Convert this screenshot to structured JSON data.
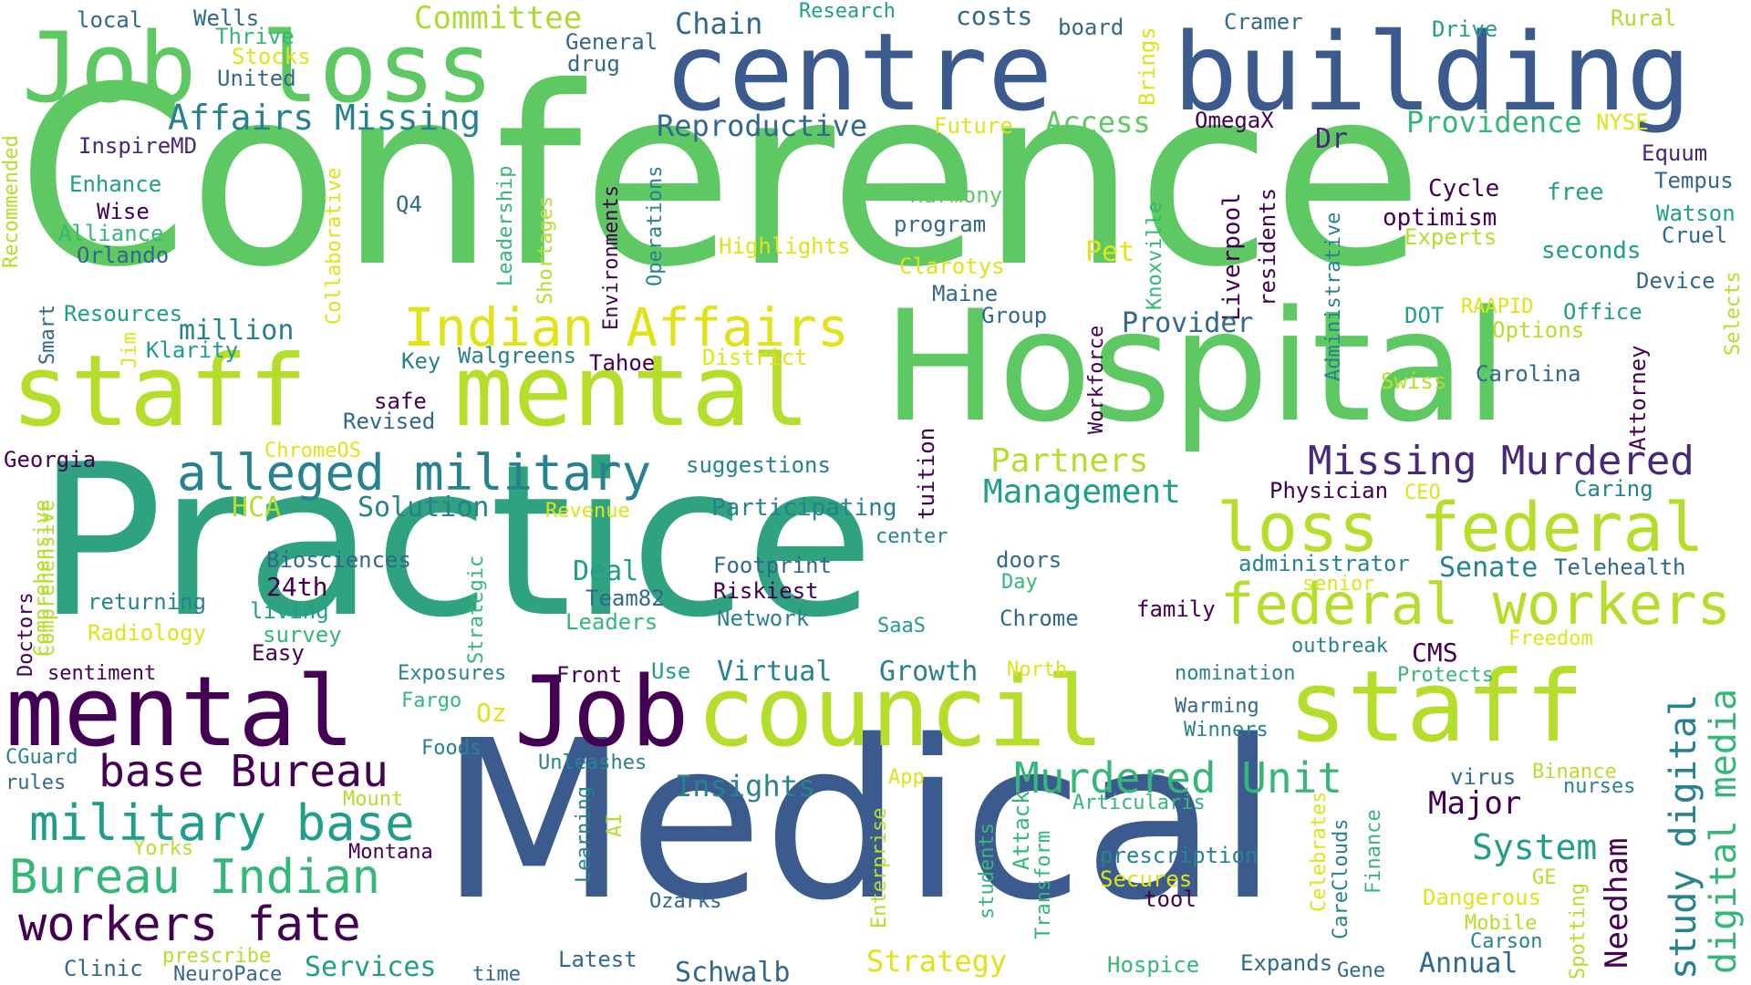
{
  "palette": {
    "dark_purple": "#440154",
    "purple": "#482878",
    "indigo": "#3e4989",
    "blue": "#31688e",
    "teal_blue": "#26828e",
    "teal": "#1f9e89",
    "green_teal": "#35b779",
    "green": "#6ece58",
    "lime": "#b5de2b",
    "yellow": "#fde725"
  },
  "words": [
    {
      "id": "conference",
      "text": "Conference"
    },
    {
      "id": "medical",
      "text": "Medical"
    },
    {
      "id": "practice",
      "text": "Practice"
    },
    {
      "id": "hospital",
      "text": "Hospital"
    },
    {
      "id": "centre",
      "text": "centre"
    },
    {
      "id": "building",
      "text": "building"
    },
    {
      "id": "job-1",
      "text": "Job"
    },
    {
      "id": "loss-1",
      "text": "loss"
    },
    {
      "id": "staff-1",
      "text": "staff"
    },
    {
      "id": "mental-1",
      "text": "mental"
    },
    {
      "id": "mental-2",
      "text": "mental"
    },
    {
      "id": "job-2",
      "text": "Job"
    },
    {
      "id": "council",
      "text": "council"
    },
    {
      "id": "staff-2",
      "text": "staff"
    },
    {
      "id": "loss-federal",
      "text": "loss federal"
    },
    {
      "id": "federal-workers",
      "text": "federal workers"
    },
    {
      "id": "indian-affairs",
      "text": "Indian Affairs"
    },
    {
      "id": "alleged-military",
      "text": "alleged military"
    },
    {
      "id": "missing-murdered",
      "text": "Missing Murdered"
    },
    {
      "id": "murdered-unit",
      "text": "Murdered Unit"
    },
    {
      "id": "base-bureau",
      "text": "base Bureau"
    },
    {
      "id": "military-base",
      "text": "military base"
    },
    {
      "id": "bureau-indian",
      "text": "Bureau Indian"
    },
    {
      "id": "workers-fate",
      "text": "workers fate"
    },
    {
      "id": "affairs-missing",
      "text": "Affairs Missing"
    },
    {
      "id": "study-digital",
      "text": "study digital"
    },
    {
      "id": "digital-media",
      "text": "digital media"
    },
    {
      "id": "committee",
      "text": "Committee"
    },
    {
      "id": "chain",
      "text": "Chain"
    },
    {
      "id": "costs",
      "text": "costs"
    },
    {
      "id": "research",
      "text": "Research"
    },
    {
      "id": "board",
      "text": "board"
    },
    {
      "id": "cramer",
      "text": "Cramer"
    },
    {
      "id": "drive",
      "text": "Drive"
    },
    {
      "id": "rural",
      "text": "Rural"
    },
    {
      "id": "local",
      "text": "local"
    },
    {
      "id": "wells",
      "text": "Wells"
    },
    {
      "id": "thrive",
      "text": "Thrive"
    },
    {
      "id": "stocks",
      "text": "Stocks"
    },
    {
      "id": "united",
      "text": "United"
    },
    {
      "id": "general",
      "text": "General"
    },
    {
      "id": "drug",
      "text": "drug"
    },
    {
      "id": "brings",
      "text": "Brings"
    },
    {
      "id": "reproductive",
      "text": "Reproductive"
    },
    {
      "id": "future",
      "text": "Future"
    },
    {
      "id": "access",
      "text": "Access"
    },
    {
      "id": "omegax",
      "text": "OmegaX"
    },
    {
      "id": "providence",
      "text": "Providence"
    },
    {
      "id": "nyse",
      "text": "NYSE"
    },
    {
      "id": "dr",
      "text": "Dr"
    },
    {
      "id": "equum",
      "text": "Equum"
    },
    {
      "id": "tempus",
      "text": "Tempus"
    },
    {
      "id": "cycle",
      "text": "Cycle"
    },
    {
      "id": "free",
      "text": "free"
    },
    {
      "id": "watson",
      "text": "Watson"
    },
    {
      "id": "optimism",
      "text": "optimism"
    },
    {
      "id": "cruel",
      "text": "Cruel"
    },
    {
      "id": "experts",
      "text": "Experts"
    },
    {
      "id": "seconds",
      "text": "seconds"
    },
    {
      "id": "device",
      "text": "Device"
    },
    {
      "id": "inspiremd",
      "text": "InspireMD"
    },
    {
      "id": "recommended",
      "text": "Recommended"
    },
    {
      "id": "enhance",
      "text": "Enhance"
    },
    {
      "id": "wise",
      "text": "Wise"
    },
    {
      "id": "alliance",
      "text": "Alliance"
    },
    {
      "id": "orlando",
      "text": "Orlando"
    },
    {
      "id": "q4",
      "text": "Q4"
    },
    {
      "id": "collaborative",
      "text": "Collaborative"
    },
    {
      "id": "leadership",
      "text": "Leadership"
    },
    {
      "id": "shortages",
      "text": "Shortages"
    },
    {
      "id": "environments",
      "text": "Environments"
    },
    {
      "id": "operations",
      "text": "Operations"
    },
    {
      "id": "harmony",
      "text": "Harmony"
    },
    {
      "id": "program",
      "text": "program"
    },
    {
      "id": "highlights",
      "text": "Highlights"
    },
    {
      "id": "clarotys",
      "text": "Clarotys"
    },
    {
      "id": "pet",
      "text": "Pet"
    },
    {
      "id": "knoxville",
      "text": "Knoxville"
    },
    {
      "id": "liverpool",
      "text": "Liverpool"
    },
    {
      "id": "residents",
      "text": "residents"
    },
    {
      "id": "administrative",
      "text": "Administrative"
    },
    {
      "id": "maine",
      "text": "Maine"
    },
    {
      "id": "group",
      "text": "Group"
    },
    {
      "id": "workforce",
      "text": "Workforce"
    },
    {
      "id": "provider",
      "text": "Provider"
    },
    {
      "id": "dot",
      "text": "DOT"
    },
    {
      "id": "raapid",
      "text": "RAAPID"
    },
    {
      "id": "office",
      "text": "Office"
    },
    {
      "id": "options",
      "text": "Options"
    },
    {
      "id": "selects",
      "text": "Selects"
    },
    {
      "id": "attorney",
      "text": "Attorney"
    },
    {
      "id": "smart",
      "text": "Smart"
    },
    {
      "id": "resources",
      "text": "Resources"
    },
    {
      "id": "jim",
      "text": "Jim"
    },
    {
      "id": "million",
      "text": "million"
    },
    {
      "id": "klarity",
      "text": "Klarity"
    },
    {
      "id": "key",
      "text": "Key"
    },
    {
      "id": "walgreens",
      "text": "Walgreens"
    },
    {
      "id": "tahoe",
      "text": "Tahoe"
    },
    {
      "id": "district",
      "text": "District"
    },
    {
      "id": "swiss",
      "text": "Swiss"
    },
    {
      "id": "carolina",
      "text": "Carolina"
    },
    {
      "id": "safe",
      "text": "safe"
    },
    {
      "id": "revised",
      "text": "Revised"
    },
    {
      "id": "georgia",
      "text": "Georgia"
    },
    {
      "id": "chromeos",
      "text": "ChromeOS"
    },
    {
      "id": "suggestions",
      "text": "suggestions"
    },
    {
      "id": "tuition",
      "text": "tuition"
    },
    {
      "id": "partners",
      "text": "Partners"
    },
    {
      "id": "management",
      "text": "Management"
    },
    {
      "id": "physician",
      "text": "Physician"
    },
    {
      "id": "ceo",
      "text": "CEO"
    },
    {
      "id": "caring",
      "text": "Caring"
    },
    {
      "id": "comprehensive-1",
      "text": "Comprehensive"
    },
    {
      "id": "hca",
      "text": "HCA"
    },
    {
      "id": "solution",
      "text": "Solution"
    },
    {
      "id": "revenue",
      "text": "Revenue"
    },
    {
      "id": "participating",
      "text": "Participating"
    },
    {
      "id": "center",
      "text": "center"
    },
    {
      "id": "biosciences",
      "text": "Biosciences"
    },
    {
      "id": "strategic",
      "text": "Strategic"
    },
    {
      "id": "doors",
      "text": "doors"
    },
    {
      "id": "day",
      "text": "Day"
    },
    {
      "id": "administrator",
      "text": "administrator"
    },
    {
      "id": "senior",
      "text": "senior"
    },
    {
      "id": "senate",
      "text": "Senate"
    },
    {
      "id": "telehealth",
      "text": "Telehealth"
    },
    {
      "id": "24th",
      "text": "24th"
    },
    {
      "id": "deal",
      "text": "Deal"
    },
    {
      "id": "footprint",
      "text": "Footprint"
    },
    {
      "id": "riskiest",
      "text": "Riskiest"
    },
    {
      "id": "team82",
      "text": "Team82"
    },
    {
      "id": "doctors",
      "text": "Doctors"
    },
    {
      "id": "comprehensive-2",
      "text": "Comprehensive"
    },
    {
      "id": "returning",
      "text": "returning"
    },
    {
      "id": "living",
      "text": "living"
    },
    {
      "id": "leaders",
      "text": "Leaders"
    },
    {
      "id": "network",
      "text": "Network"
    },
    {
      "id": "chrome",
      "text": "Chrome"
    },
    {
      "id": "family",
      "text": "family"
    },
    {
      "id": "saas",
      "text": "SaaS"
    },
    {
      "id": "radiology",
      "text": "Radiology"
    },
    {
      "id": "survey",
      "text": "survey"
    },
    {
      "id": "easy",
      "text": "Easy"
    },
    {
      "id": "outbreak",
      "text": "outbreak"
    },
    {
      "id": "freedom",
      "text": "Freedom"
    },
    {
      "id": "cms",
      "text": "CMS"
    },
    {
      "id": "sentiment",
      "text": "sentiment"
    },
    {
      "id": "exposures",
      "text": "Exposures"
    },
    {
      "id": "front",
      "text": "Front"
    },
    {
      "id": "use",
      "text": "Use"
    },
    {
      "id": "virtual",
      "text": "Virtual"
    },
    {
      "id": "growth",
      "text": "Growth"
    },
    {
      "id": "north",
      "text": "North"
    },
    {
      "id": "nomination",
      "text": "nomination"
    },
    {
      "id": "protects",
      "text": "Protects"
    },
    {
      "id": "fargo",
      "text": "Fargo"
    },
    {
      "id": "oz",
      "text": "Oz"
    },
    {
      "id": "warming",
      "text": "Warming"
    },
    {
      "id": "winners",
      "text": "Winners"
    },
    {
      "id": "cguard",
      "text": "CGuard"
    },
    {
      "id": "rules",
      "text": "rules"
    },
    {
      "id": "foods",
      "text": "Foods"
    },
    {
      "id": "unleashes",
      "text": "Unleashes"
    },
    {
      "id": "app",
      "text": "App"
    },
    {
      "id": "insights",
      "text": "Insights"
    },
    {
      "id": "virus",
      "text": "virus"
    },
    {
      "id": "binance",
      "text": "Binance"
    },
    {
      "id": "nurses",
      "text": "nurses"
    },
    {
      "id": "major",
      "text": "Major"
    },
    {
      "id": "mount",
      "text": "Mount"
    },
    {
      "id": "articularis",
      "text": "Articularis"
    },
    {
      "id": "learning",
      "text": "Learning"
    },
    {
      "id": "ai",
      "text": "AI"
    },
    {
      "id": "enterprise",
      "text": "Enterprise"
    },
    {
      "id": "students",
      "text": "students"
    },
    {
      "id": "attack",
      "text": "Attack"
    },
    {
      "id": "transform",
      "text": "Transform"
    },
    {
      "id": "celebrates",
      "text": "Celebrates"
    },
    {
      "id": "carecloud",
      "text": "CareClouds"
    },
    {
      "id": "finance",
      "text": "Finance"
    },
    {
      "id": "system",
      "text": "System"
    },
    {
      "id": "needham",
      "text": "Needham"
    },
    {
      "id": "yorks",
      "text": "Yorks"
    },
    {
      "id": "montana",
      "text": "Montana"
    },
    {
      "id": "prescription",
      "text": "prescription"
    },
    {
      "id": "secures",
      "text": "Secures"
    },
    {
      "id": "tool",
      "text": "tool"
    },
    {
      "id": "ge",
      "text": "GE"
    },
    {
      "id": "dangerous",
      "text": "Dangerous"
    },
    {
      "id": "ozarks",
      "text": "Ozarks"
    },
    {
      "id": "mobile",
      "text": "Mobile"
    },
    {
      "id": "carson",
      "text": "Carson"
    },
    {
      "id": "spotting",
      "text": "Spotting"
    },
    {
      "id": "clinic",
      "text": "Clinic"
    },
    {
      "id": "prescribe",
      "text": "prescribe"
    },
    {
      "id": "neuropace",
      "text": "NeuroPace"
    },
    {
      "id": "services",
      "text": "Services"
    },
    {
      "id": "time",
      "text": "time"
    },
    {
      "id": "latest",
      "text": "Latest"
    },
    {
      "id": "schwalb",
      "text": "Schwalb"
    },
    {
      "id": "strategy",
      "text": "Strategy"
    },
    {
      "id": "hospice",
      "text": "Hospice"
    },
    {
      "id": "expands",
      "text": "Expands"
    },
    {
      "id": "gene",
      "text": "Gene"
    },
    {
      "id": "annual",
      "text": "Annual"
    }
  ]
}
